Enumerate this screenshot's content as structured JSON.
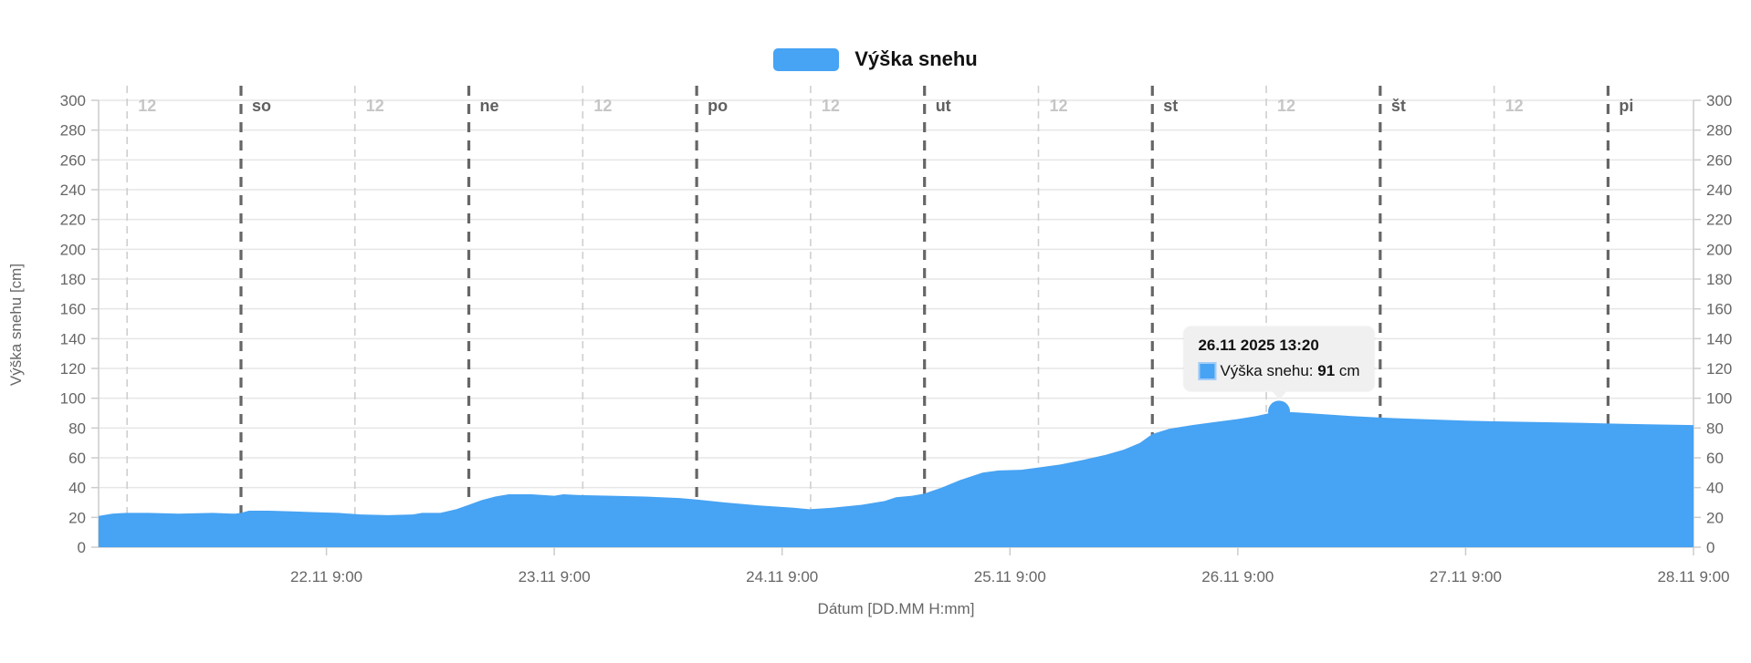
{
  "legend": {
    "label": "Výška snehu",
    "swatch_color": "#47a3f3"
  },
  "tooltip": {
    "title": "26.11 2025 13:20",
    "series_label": "Výška snehu: ",
    "value": "91",
    "unit": " cm"
  },
  "chart_data": {
    "type": "area",
    "title": "Výška snehu",
    "xlabel": "Dátum [DD.MM H:mm]",
    "ylabel": "Výška snehu [cm]",
    "grid": true,
    "legend_position": "top-center",
    "x_axis": {
      "start_time": "21.11 9:00",
      "end_time": "28.11 9:00",
      "span_days": 7,
      "ticks": [
        {
          "t": 1,
          "label": "22.11 9:00"
        },
        {
          "t": 2,
          "label": "23.11 9:00"
        },
        {
          "t": 3,
          "label": "24.11 9:00"
        },
        {
          "t": 4,
          "label": "25.11 9:00"
        },
        {
          "t": 5,
          "label": "26.11 9:00"
        },
        {
          "t": 6,
          "label": "27.11 9:00"
        },
        {
          "t": 7,
          "label": "28.11 9:00"
        }
      ]
    },
    "y_axis": {
      "min": 0,
      "max": 300,
      "step": 20,
      "ticks": [
        0,
        20,
        40,
        60,
        80,
        100,
        120,
        140,
        160,
        180,
        200,
        220,
        240,
        260,
        280,
        300
      ],
      "mirrored_right": true
    },
    "day_markers": [
      {
        "t": 0.625,
        "label": "so"
      },
      {
        "t": 1.625,
        "label": "ne"
      },
      {
        "t": 2.625,
        "label": "po"
      },
      {
        "t": 3.625,
        "label": "ut"
      },
      {
        "t": 4.625,
        "label": "st"
      },
      {
        "t": 5.625,
        "label": "št"
      },
      {
        "t": 6.625,
        "label": "pi"
      }
    ],
    "noon_markers": [
      {
        "t": 0.125,
        "label": "12"
      },
      {
        "t": 1.125,
        "label": "12"
      },
      {
        "t": 2.125,
        "label": "12"
      },
      {
        "t": 3.125,
        "label": "12"
      },
      {
        "t": 4.125,
        "label": "12"
      },
      {
        "t": 5.125,
        "label": "12"
      },
      {
        "t": 6.125,
        "label": "12"
      }
    ],
    "series": [
      {
        "name": "Výška snehu",
        "color": "#47a3f3",
        "unit": "cm",
        "points": [
          [
            0,
            21
          ],
          [
            0.06,
            22.5
          ],
          [
            0.12,
            23
          ],
          [
            0.22,
            23
          ],
          [
            0.35,
            22.5
          ],
          [
            0.5,
            23
          ],
          [
            0.6,
            22.5
          ],
          [
            0.625,
            23
          ],
          [
            0.66,
            24.5
          ],
          [
            0.75,
            24.5
          ],
          [
            0.85,
            24
          ],
          [
            0.95,
            23.5
          ],
          [
            1.05,
            23
          ],
          [
            1.15,
            22
          ],
          [
            1.27,
            21.5
          ],
          [
            1.38,
            22
          ],
          [
            1.42,
            23
          ],
          [
            1.5,
            23
          ],
          [
            1.57,
            25.5
          ],
          [
            1.625,
            28.5
          ],
          [
            1.68,
            31.5
          ],
          [
            1.74,
            34
          ],
          [
            1.8,
            35.5
          ],
          [
            1.9,
            35.5
          ],
          [
            2.0,
            34.5
          ],
          [
            2.04,
            35.5
          ],
          [
            2.1,
            35
          ],
          [
            2.25,
            34.5
          ],
          [
            2.4,
            34
          ],
          [
            2.55,
            33
          ],
          [
            2.625,
            32
          ],
          [
            2.75,
            30
          ],
          [
            2.9,
            28
          ],
          [
            3.05,
            26.5
          ],
          [
            3.12,
            25.5
          ],
          [
            3.22,
            26.5
          ],
          [
            3.35,
            28.5
          ],
          [
            3.45,
            31
          ],
          [
            3.5,
            33.5
          ],
          [
            3.57,
            34.5
          ],
          [
            3.625,
            36
          ],
          [
            3.7,
            40
          ],
          [
            3.78,
            45
          ],
          [
            3.88,
            50
          ],
          [
            3.95,
            51.5
          ],
          [
            4.05,
            52
          ],
          [
            4.125,
            53.5
          ],
          [
            4.22,
            55.5
          ],
          [
            4.32,
            58.5
          ],
          [
            4.42,
            62
          ],
          [
            4.5,
            65.5
          ],
          [
            4.57,
            70
          ],
          [
            4.625,
            76
          ],
          [
            4.7,
            79.5
          ],
          [
            4.8,
            82
          ],
          [
            4.9,
            84
          ],
          [
            5.0,
            86
          ],
          [
            5.08,
            88
          ],
          [
            5.14,
            90
          ],
          [
            5.181,
            91
          ],
          [
            5.26,
            90.5
          ],
          [
            5.35,
            89.5
          ],
          [
            5.5,
            88
          ],
          [
            5.625,
            87
          ],
          [
            5.8,
            86
          ],
          [
            6.0,
            85
          ],
          [
            6.125,
            84.5
          ],
          [
            6.3,
            84
          ],
          [
            6.5,
            83.5
          ],
          [
            6.625,
            83
          ],
          [
            6.8,
            82.5
          ],
          [
            7.0,
            82
          ]
        ]
      }
    ],
    "highlight": {
      "t": 5.181,
      "value": 91,
      "datetime": "26.11 2025 13:20"
    }
  },
  "colors": {
    "series_blue": "#47a3f3",
    "grid_line": "#e6e6e6",
    "axis_line": "#cccccc",
    "tick_label": "#666666",
    "day_label": "#606060",
    "noon_label": "#c6c6c6",
    "day_dash": "#666666",
    "noon_dash": "#cfcfcf",
    "tooltip_bg": "#f0f0f0"
  }
}
